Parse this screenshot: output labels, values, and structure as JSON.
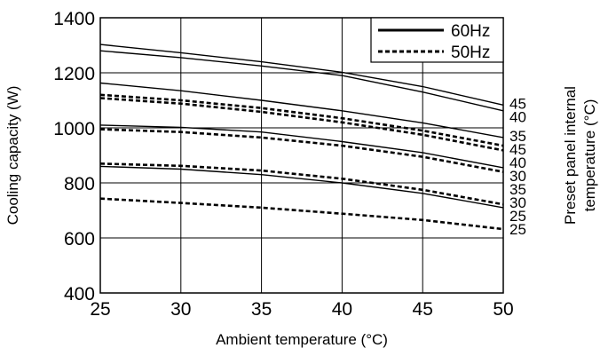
{
  "chart_data": {
    "type": "line",
    "xlabel": "Ambient temperature (°C)",
    "ylabel": "Cooling capacity (W)",
    "right_label_line1": "Preset panel internal",
    "right_label_line2": "temperature (°C)",
    "xlim": [
      25,
      50
    ],
    "ylim": [
      400,
      1400
    ],
    "xticks": [
      "25",
      "30",
      "35",
      "40",
      "45",
      "50"
    ],
    "yticks": [
      "400",
      "600",
      "800",
      "1000",
      "1200",
      "1400"
    ],
    "grid": true,
    "legend": [
      {
        "label": "60Hz",
        "style": "solid"
      },
      {
        "label": "50Hz",
        "style": "dashed"
      }
    ],
    "legend_position": "top-right",
    "x": [
      25,
      30,
      35,
      40,
      45,
      50
    ],
    "series": [
      {
        "group": "60Hz",
        "end_label": "45",
        "values": [
          1303,
          1273,
          1240,
          1202,
          1150,
          1083
        ]
      },
      {
        "group": "60Hz",
        "end_label": "40",
        "values": [
          1280,
          1255,
          1225,
          1190,
          1130,
          1062
        ]
      },
      {
        "group": "60Hz",
        "end_label": "35",
        "values": [
          1163,
          1135,
          1100,
          1062,
          1018,
          965
        ]
      },
      {
        "group": "60Hz",
        "end_label": "30",
        "values": [
          1010,
          1002,
          985,
          950,
          910,
          855
        ]
      },
      {
        "group": "60Hz",
        "end_label": "25",
        "values": [
          860,
          850,
          830,
          800,
          762,
          710
        ]
      },
      {
        "group": "50Hz",
        "end_label": "45",
        "values": [
          1120,
          1100,
          1072,
          1035,
          990,
          935
        ]
      },
      {
        "group": "50Hz",
        "end_label": "40",
        "values": [
          1108,
          1088,
          1058,
          1020,
          975,
          918
        ]
      },
      {
        "group": "50Hz",
        "end_label": "35",
        "values": [
          995,
          985,
          965,
          935,
          895,
          840
        ]
      },
      {
        "group": "50Hz",
        "end_label": "30",
        "values": [
          870,
          862,
          845,
          815,
          775,
          722
        ]
      },
      {
        "group": "50Hz",
        "end_label": "25",
        "values": [
          743,
          727,
          710,
          688,
          665,
          632
        ]
      }
    ]
  }
}
